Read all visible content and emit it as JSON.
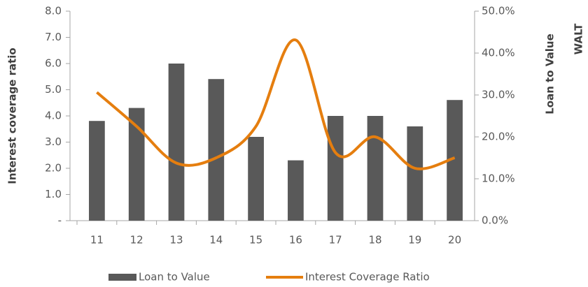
{
  "chart_data": {
    "type": "bar",
    "categories": [
      "11",
      "12",
      "13",
      "14",
      "15",
      "16",
      "17",
      "18",
      "19",
      "20"
    ],
    "series": [
      {
        "name": "Loan to Value",
        "type": "bar",
        "axis": "y2",
        "color": "#595959",
        "values": [
          23.8,
          26.9,
          37.5,
          33.8,
          20.0,
          14.4,
          25.0,
          25.0,
          22.5,
          28.8
        ]
      },
      {
        "name": "Interest Coverage Ratio",
        "type": "line",
        "axis": "y",
        "color": "#e57e0f",
        "values": [
          4.9,
          3.6,
          2.2,
          2.4,
          3.6,
          6.9,
          2.6,
          3.2,
          2.0,
          2.4
        ]
      }
    ],
    "ylabel": "Interest coverage ratio",
    "y2label": "Loan to Value",
    "annotation": "WALT",
    "ylim": [
      0,
      8
    ],
    "yticks": [
      {
        "value": 0,
        "label": "-"
      },
      {
        "value": 1,
        "label": "1.0"
      },
      {
        "value": 2,
        "label": "2.0"
      },
      {
        "value": 3,
        "label": "3.0"
      },
      {
        "value": 4,
        "label": "4.0"
      },
      {
        "value": 5,
        "label": "5.0"
      },
      {
        "value": 6,
        "label": "6.0"
      },
      {
        "value": 7,
        "label": "7.0"
      },
      {
        "value": 8,
        "label": "8.0"
      }
    ],
    "y2lim": [
      0,
      50
    ],
    "y2ticks": [
      {
        "value": 0,
        "label": "0.0%"
      },
      {
        "value": 10,
        "label": "10.0%"
      },
      {
        "value": 20,
        "label": "20.0%"
      },
      {
        "value": 30,
        "label": "30.0%"
      },
      {
        "value": 40,
        "label": "40.0%"
      },
      {
        "value": 50,
        "label": "50.0%"
      }
    ],
    "grid": false,
    "legend": "bottom"
  }
}
